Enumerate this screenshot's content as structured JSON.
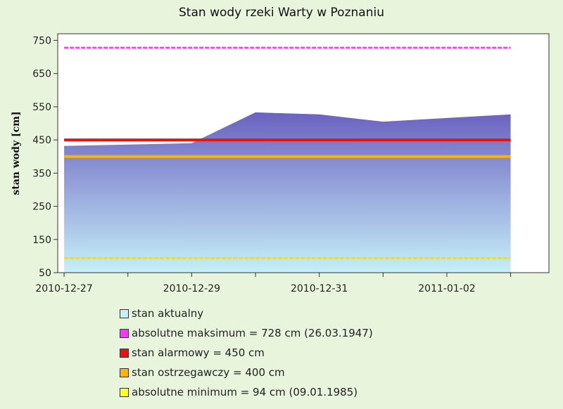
{
  "chart_data": {
    "type": "area",
    "title": "Stan wody rzeki Warty w Poznaniu",
    "xlabel": "",
    "ylabel": "stan wody [cm]",
    "ylim": [
      50,
      770
    ],
    "yticks": [
      50,
      150,
      250,
      350,
      450,
      550,
      650,
      750
    ],
    "xticks": [
      "2010-12-27",
      "2010-12-29",
      "2010-12-31",
      "2011-01-02"
    ],
    "xlim": [
      "2010-12-26 21:36",
      "2011-01-03 14:24"
    ],
    "grid": false,
    "series": [
      {
        "name": "stan aktualny",
        "type": "area",
        "x": [
          "2010-12-27",
          "2010-12-28",
          "2010-12-29",
          "2010-12-30",
          "2010-12-31",
          "2011-01-01",
          "2011-01-02",
          "2011-01-03"
        ],
        "values": [
          432,
          436,
          440,
          533,
          527,
          505,
          516,
          527
        ]
      },
      {
        "name": "absolutne maksimum = 728 cm (26.03.1947)",
        "type": "hline",
        "value": 728,
        "style": "dashed",
        "color": "#ff33ff"
      },
      {
        "name": "stan alarmowy = 450 cm",
        "type": "hline",
        "value": 450,
        "style": "solid",
        "color": "#ee1111"
      },
      {
        "name": "stan ostrzegawczy = 400 cm",
        "type": "hline",
        "value": 400,
        "style": "solid",
        "color": "#ffb300"
      },
      {
        "name": "absolutne minimum = 94 cm (09.01.1985)",
        "type": "hline",
        "value": 94,
        "style": "dashed",
        "color": "#e8e010"
      }
    ],
    "legend": {
      "placement": "bottom",
      "items": [
        {
          "label": "stan aktualny",
          "color": "#c6eff8"
        },
        {
          "label": "absolutne maksimum = 728 cm (26.03.1947)",
          "color": "#ff33ff"
        },
        {
          "label": "stan alarmowy = 450 cm",
          "color": "#ee1111"
        },
        {
          "label": "stan ostrzegawczy = 400 cm",
          "color": "#ffb300"
        },
        {
          "label": "absolutne minimum = 94 cm (09.01.1985)",
          "color": "#ffff22"
        }
      ]
    },
    "colors": {
      "area_top": "#6b62c0",
      "area_bottom": "#c6eff8",
      "plot_bg": "#ffffff"
    }
  }
}
